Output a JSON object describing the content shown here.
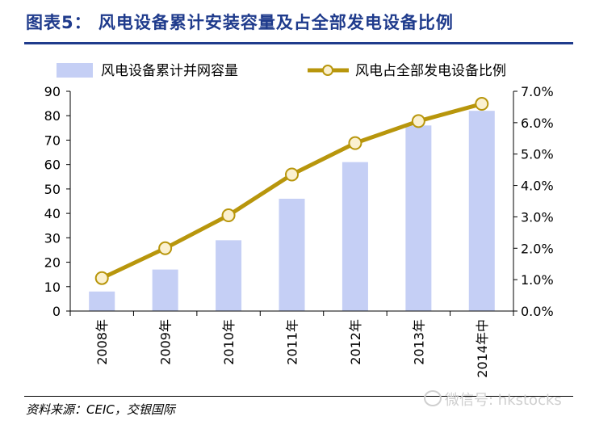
{
  "header": {
    "title": "图表5： 风电设备累计安装容量及占全部发电设备比例"
  },
  "footer": {
    "source": "资料来源：CEIC，交银国际",
    "watermark": "微信号: hkstocks"
  },
  "colors": {
    "bar": "#c5cff5",
    "line": "#b8960c",
    "marker_fill": "#fbf1d0",
    "title": "#1f3b8c"
  },
  "chart_data": {
    "type": "bar",
    "title": "",
    "xlabel": "",
    "ylabel": "",
    "categories": [
      "2008年",
      "2009年",
      "2010年",
      "2011年",
      "2012年",
      "2013年",
      "2014年中"
    ],
    "series": [
      {
        "name": "风电设备累计并网容量",
        "type": "bar",
        "axis": "left",
        "values": [
          8,
          17,
          29,
          46,
          61,
          76,
          82
        ]
      },
      {
        "name": "风电占全部发电设备比例",
        "type": "line",
        "axis": "right",
        "values": [
          1.05,
          2.0,
          3.05,
          4.35,
          5.35,
          6.05,
          6.6
        ]
      }
    ],
    "y_left": {
      "ylim": [
        0,
        90
      ],
      "ticks": [
        "0",
        "10",
        "20",
        "30",
        "40",
        "50",
        "60",
        "70",
        "80",
        "90"
      ]
    },
    "y_right": {
      "ylim": [
        0,
        7
      ],
      "ticks": [
        "0.0%",
        "1.0%",
        "2.0%",
        "3.0%",
        "4.0%",
        "5.0%",
        "6.0%",
        "7.0%"
      ]
    },
    "grid": false,
    "legend": "top"
  }
}
